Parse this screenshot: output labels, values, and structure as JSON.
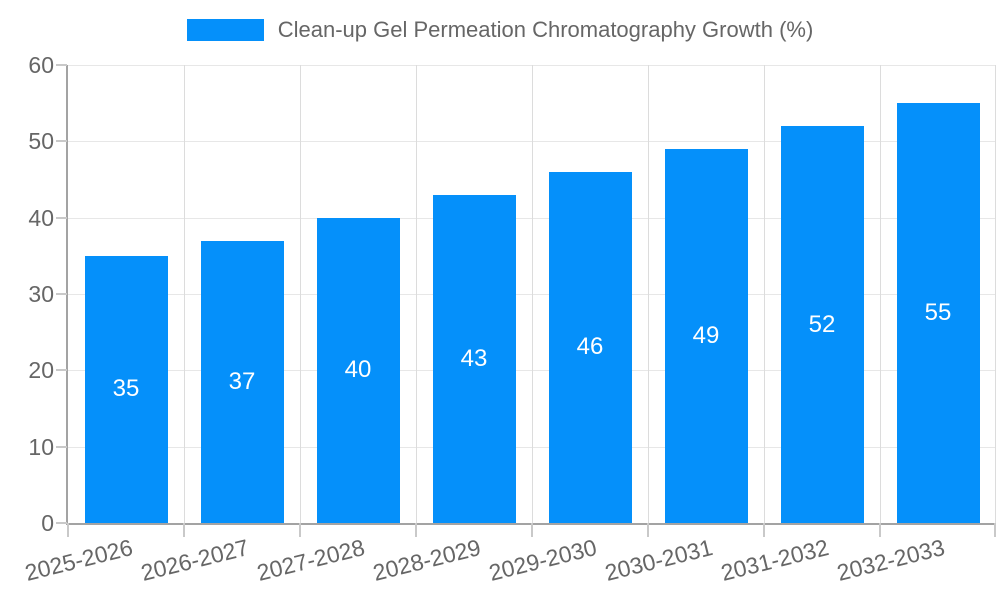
{
  "chart_data": {
    "type": "bar",
    "title": "Clean-up Gel Permeation Chromatography Growth (%)",
    "categories": [
      "2025-2026",
      "2026-2027",
      "2027-2028",
      "2028-2029",
      "2029-2030",
      "2030-2031",
      "2031-2032",
      "2032-2033"
    ],
    "values": [
      35,
      37,
      40,
      43,
      46,
      49,
      52,
      55
    ],
    "xlabel": "",
    "ylabel": "",
    "ylim": [
      0,
      60
    ],
    "yticks": [
      0,
      10,
      20,
      30,
      40,
      50,
      60
    ],
    "grid": true,
    "legend_position": "top",
    "bar_value_labels_shown": true,
    "x_label_rotation_deg": -14
  },
  "palette": {
    "bar": "#0590FA",
    "text": "#666666",
    "value": "#FFFFFF",
    "hgrid": "#E7E7E7",
    "vgrid": "#DCDCDC",
    "axis": "#A3A3A3",
    "tick": "#C9C9C9"
  }
}
